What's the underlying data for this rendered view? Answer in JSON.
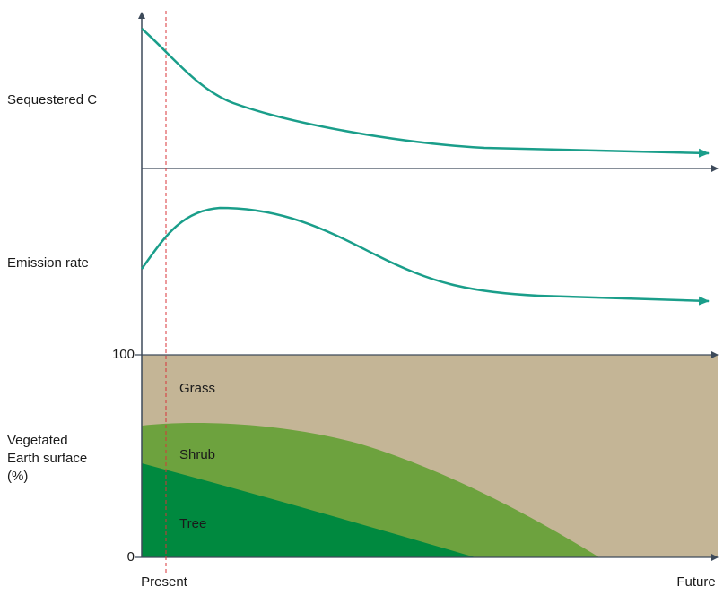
{
  "labels": {
    "sequestered": "Sequestered C",
    "emission": "Emission rate",
    "vegetated": [
      "Vegetated",
      "Earth surface",
      "(%)"
    ]
  },
  "axis": {
    "top_tick": "100",
    "bottom_tick": "0",
    "start": "Present",
    "end": "Future"
  },
  "regions": {
    "grass": "Grass",
    "shrub": "Shrub",
    "tree": "Tree"
  }
}
